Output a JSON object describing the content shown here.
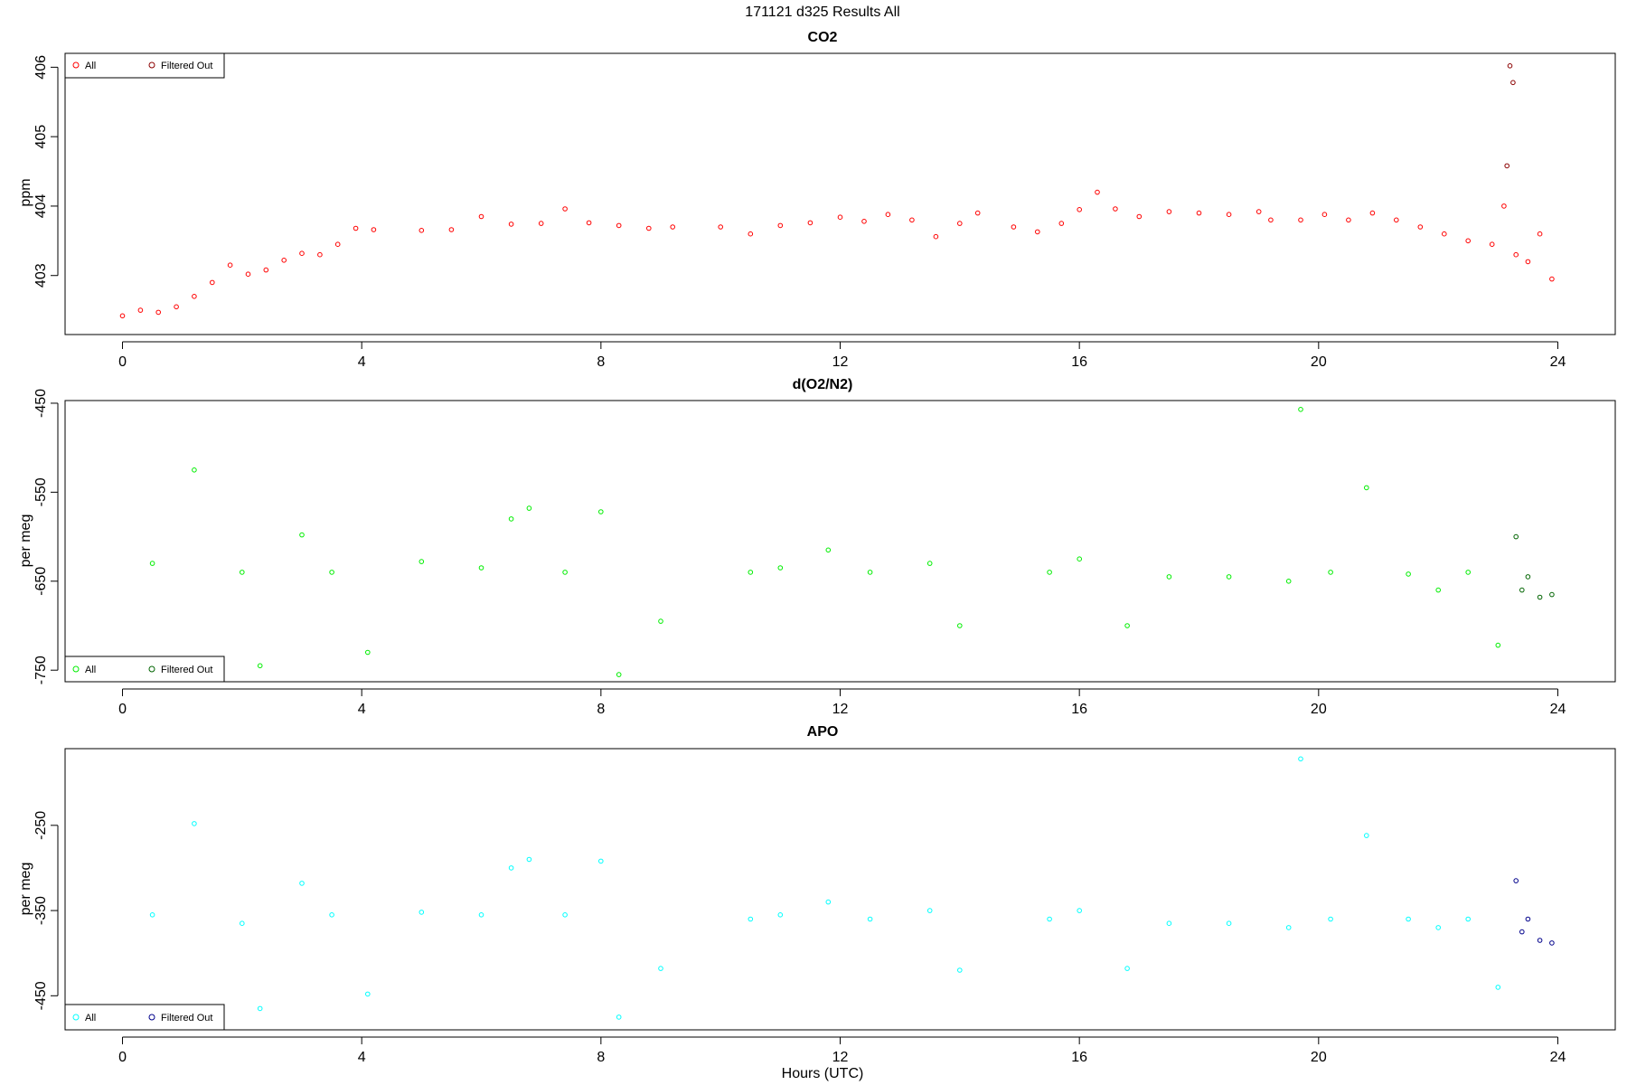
{
  "figure": {
    "title": "171121   d325   Results All",
    "xlabel": "Hours (UTC)"
  },
  "chart_data": [
    {
      "type": "scatter",
      "title": "CO2",
      "ylabel": "ppm",
      "xlim": [
        -0.96,
        24.96
      ],
      "ylim": [
        402.15,
        406.2
      ],
      "xticks": [
        0,
        4,
        8,
        12,
        16,
        20,
        24
      ],
      "yticks": [
        403,
        404,
        405,
        406
      ],
      "grid": false,
      "legend_position": "top-left",
      "legend": [
        {
          "label": "All",
          "color": "#ff0000"
        },
        {
          "label": "Filtered Out",
          "color": "#8b0000"
        }
      ],
      "series": [
        {
          "name": "All",
          "color": "#ff0000",
          "x": [
            0.0,
            0.3,
            0.6,
            0.9,
            1.2,
            1.5,
            1.8,
            2.1,
            2.4,
            2.7,
            3.0,
            3.3,
            3.6,
            3.9,
            4.2,
            5.0,
            5.5,
            6.0,
            6.5,
            7.0,
            7.4,
            7.8,
            8.3,
            8.8,
            9.2,
            10.0,
            10.5,
            11.0,
            11.5,
            12.0,
            12.4,
            12.8,
            13.2,
            13.6,
            14.0,
            14.3,
            14.9,
            15.3,
            15.7,
            16.0,
            16.3,
            16.6,
            17.0,
            17.5,
            18.0,
            18.5,
            19.0,
            19.2,
            19.7,
            20.1,
            20.5,
            20.9,
            21.3,
            21.7,
            22.1,
            22.5,
            22.9,
            23.1,
            23.3,
            23.5,
            23.7,
            23.9
          ],
          "y": [
            402.42,
            402.5,
            402.47,
            402.55,
            402.7,
            402.9,
            403.15,
            403.02,
            403.08,
            403.22,
            403.32,
            403.3,
            403.45,
            403.68,
            403.66,
            403.65,
            403.66,
            403.85,
            403.74,
            403.75,
            403.96,
            403.76,
            403.72,
            403.68,
            403.7,
            403.7,
            403.6,
            403.72,
            403.76,
            403.84,
            403.78,
            403.88,
            403.8,
            403.56,
            403.75,
            403.9,
            403.7,
            403.63,
            403.75,
            403.95,
            404.2,
            403.96,
            403.85,
            403.92,
            403.9,
            403.88,
            403.92,
            403.8,
            403.8,
            403.88,
            403.8,
            403.9,
            403.8,
            403.7,
            403.6,
            403.5,
            403.45,
            404.0,
            403.3,
            403.2,
            403.6,
            402.95
          ]
        },
        {
          "name": "Filtered Out",
          "color": "#8b0000",
          "x": [
            23.2,
            23.25,
            23.15
          ],
          "y": [
            406.02,
            405.78,
            404.58
          ],
          "note_style": "scattered excursion points"
        }
      ]
    },
    {
      "type": "scatter",
      "title": "d(O2/N2)",
      "ylabel": "per meg",
      "xlim": [
        -0.96,
        24.96
      ],
      "ylim": [
        -763,
        -447
      ],
      "xticks": [
        0,
        4,
        8,
        12,
        16,
        20,
        24
      ],
      "yticks": [
        -750,
        -650,
        -550,
        -450
      ],
      "grid": false,
      "legend_position": "bottom-left",
      "legend": [
        {
          "label": "All",
          "color": "#00ee00"
        },
        {
          "label": "Filtered Out",
          "color": "#006400"
        }
      ],
      "series": [
        {
          "name": "All",
          "color": "#00ee00",
          "x": [
            0.5,
            1.2,
            2.0,
            2.3,
            3.0,
            3.5,
            4.1,
            5.0,
            6.0,
            6.5,
            6.8,
            7.4,
            8.0,
            8.3,
            9.0,
            10.5,
            11.0,
            11.8,
            12.5,
            13.5,
            14.0,
            15.5,
            16.0,
            16.8,
            17.5,
            18.5,
            19.5,
            19.7,
            20.2,
            20.8,
            21.5,
            22.0,
            22.5,
            23.0
          ],
          "y": [
            -630,
            -525,
            -640,
            -745,
            -598,
            -640,
            -730,
            -628,
            -635,
            -580,
            -568,
            -640,
            -572,
            -755,
            -695,
            -640,
            -635,
            -615,
            -640,
            -630,
            -700,
            -640,
            -625,
            -700,
            -645,
            -645,
            -650,
            -457,
            -640,
            -545,
            -642,
            -660,
            -640,
            -722
          ]
        },
        {
          "name": "Filtered Out",
          "color": "#006400",
          "x": [
            23.3,
            23.5,
            23.7,
            23.9,
            23.4
          ],
          "y": [
            -600,
            -645,
            -668,
            -665,
            -660
          ]
        }
      ]
    },
    {
      "type": "scatter",
      "title": "APO",
      "ylabel": "per meg",
      "xlim": [
        -0.96,
        24.96
      ],
      "ylim": [
        -490,
        -160
      ],
      "xticks": [
        0,
        4,
        8,
        12,
        16,
        20,
        24
      ],
      "yticks": [
        -450,
        -350,
        -250
      ],
      "grid": false,
      "legend_position": "bottom-left",
      "legend": [
        {
          "label": "All",
          "color": "#00ffff"
        },
        {
          "label": "Filtered Out",
          "color": "#00008b"
        }
      ],
      "series": [
        {
          "name": "All",
          "color": "#00ffff",
          "x": [
            0.5,
            1.2,
            2.0,
            2.3,
            3.0,
            3.5,
            4.1,
            5.0,
            6.0,
            6.5,
            6.8,
            7.4,
            8.0,
            8.3,
            9.0,
            10.5,
            11.0,
            11.8,
            12.5,
            13.5,
            14.0,
            15.5,
            16.0,
            16.8,
            17.5,
            18.5,
            19.5,
            19.7,
            20.2,
            20.8,
            21.5,
            22.0,
            22.5,
            23.0
          ],
          "y": [
            -355,
            -248,
            -365,
            -465,
            -318,
            -355,
            -448,
            -352,
            -355,
            -300,
            -290,
            -355,
            -292,
            -475,
            -418,
            -360,
            -355,
            -340,
            -360,
            -350,
            -420,
            -360,
            -350,
            -418,
            -365,
            -365,
            -370,
            -172,
            -360,
            -262,
            -360,
            -370,
            -360,
            -440
          ]
        },
        {
          "name": "Filtered Out",
          "color": "#00008b",
          "x": [
            23.3,
            23.5,
            23.7,
            23.9,
            23.4
          ],
          "y": [
            -315,
            -360,
            -385,
            -388,
            -375
          ]
        }
      ]
    }
  ]
}
